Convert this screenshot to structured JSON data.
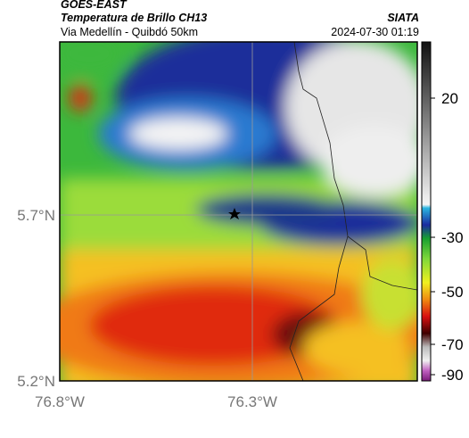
{
  "header": {
    "satellite": "GOES-EAST",
    "product": "Temperatura de Brillo CH13",
    "region": "Via Medellín - Quibdó 50km",
    "source": "SIATA",
    "timestamp": "2024-07-30 01:19"
  },
  "axes": {
    "lat_labels": [
      "5.7°N",
      "5.2°N"
    ],
    "lon_labels": [
      "76.8°W",
      "76.3°W"
    ]
  },
  "colorbar": {
    "ticks": [
      20,
      -30,
      -50,
      -70,
      -90
    ]
  }
}
